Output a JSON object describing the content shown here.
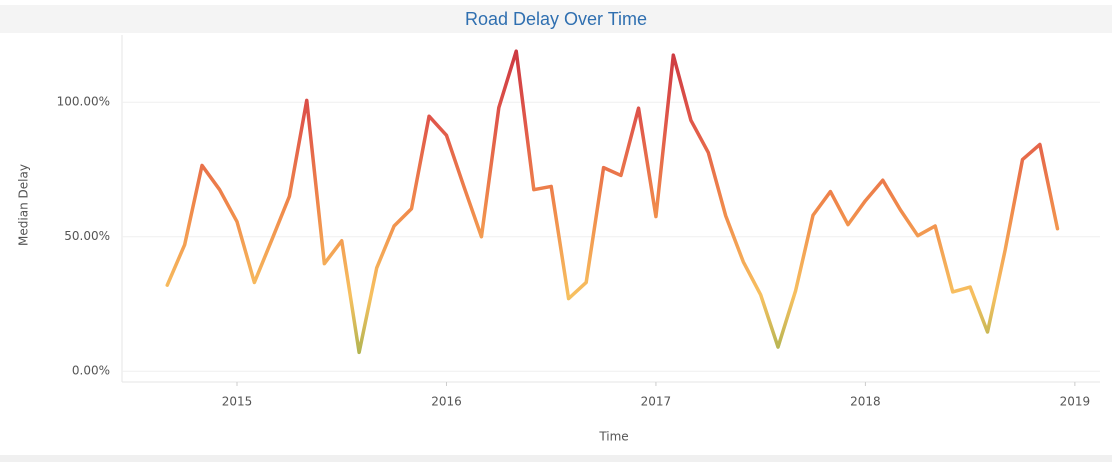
{
  "chart_data": {
    "type": "line",
    "title": "Road Delay Over Time",
    "x_label": "Time",
    "y_label": "Median Delay",
    "x": [
      2014.667,
      2014.75,
      2014.833,
      2014.917,
      2015.0,
      2015.083,
      2015.167,
      2015.25,
      2015.333,
      2015.417,
      2015.5,
      2015.583,
      2015.667,
      2015.75,
      2015.833,
      2015.917,
      2016.0,
      2016.083,
      2016.167,
      2016.25,
      2016.333,
      2016.417,
      2016.5,
      2016.583,
      2016.667,
      2016.75,
      2016.833,
      2016.917,
      2017.0,
      2017.083,
      2017.167,
      2017.25,
      2017.333,
      2017.417,
      2017.5,
      2017.583,
      2017.667,
      2017.75,
      2017.833,
      2017.917,
      2018.0,
      2018.083,
      2018.167,
      2018.25,
      2018.333,
      2018.417,
      2018.5,
      2018.583,
      2018.667,
      2018.75,
      2018.833,
      2018.917
    ],
    "series": [
      {
        "name": "Median Delay",
        "colors": [
          "#8fae4a",
          "#f7c060",
          "#f08a4b",
          "#e0574a",
          "#c8323f"
        ],
        "values": [
          32,
          47,
          76.5,
          67.5,
          55.6,
          33,
          49,
          65,
          100.7,
          40,
          48.5,
          7,
          38.4,
          54,
          60.4,
          94.8,
          87.7,
          68.7,
          50,
          98,
          119,
          67.5,
          68.7,
          27,
          33,
          75.7,
          72.8,
          97.8,
          57.5,
          117.5,
          93.3,
          81.3,
          57.8,
          40.7,
          28.4,
          9,
          30,
          58,
          66.8,
          54.5,
          63.4,
          71,
          60,
          50.4,
          54,
          29.5,
          31.3,
          14.6,
          45,
          78.7,
          84.3,
          53
        ]
      }
    ],
    "xlim": [
      2014.451,
      2019.12
    ],
    "xticks": [
      2015,
      2016,
      2017,
      2018,
      2019
    ],
    "ylim": [
      -4,
      125
    ],
    "yticks": [
      {
        "value": 0,
        "label": "0.00%"
      },
      {
        "value": 50,
        "label": "50.00%"
      },
      {
        "value": 100,
        "label": "100.00%"
      }
    ],
    "grid": true
  }
}
